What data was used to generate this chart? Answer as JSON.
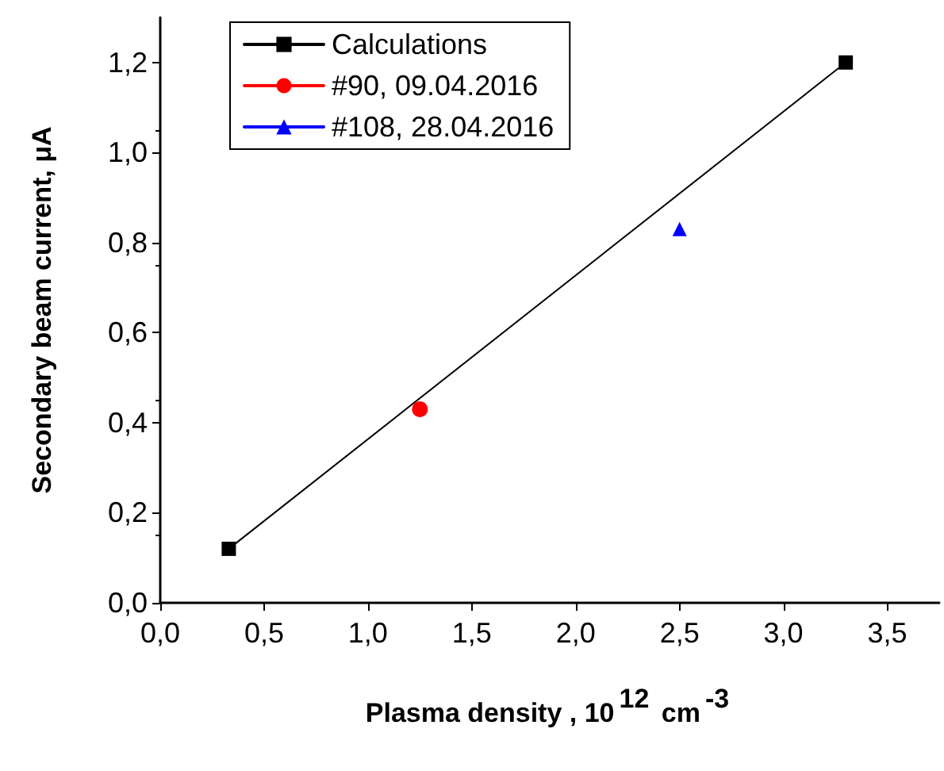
{
  "chart_data": {
    "type": "line",
    "xlabel": "Plasma density ,  10$^{12}$ cm$^{-3}$",
    "ylabel": "Secondary beam current, μA",
    "series": [
      {
        "name": "Calculations",
        "color": "#000000",
        "x": [
          0.33,
          3.3
        ],
        "values": [
          0.12,
          1.2
        ],
        "marker": "square"
      },
      {
        "name": "#90, 09.04.2016",
        "color": "#ff0000",
        "x": [
          1.25
        ],
        "values": [
          0.43
        ],
        "marker": "circle"
      },
      {
        "name": "#108, 28.04.2016",
        "color": "#0000ff",
        "x": [
          2.5
        ],
        "values": [
          0.83
        ],
        "marker": "triangle"
      }
    ],
    "xlim": [
      0,
      3.75
    ],
    "ylim": [
      0,
      1.3
    ],
    "xticks": [
      {
        "value": 0,
        "label": "0,0"
      },
      {
        "value": 0.5,
        "label": "0,5"
      },
      {
        "value": 1,
        "label": "1,0"
      },
      {
        "value": 1.5,
        "label": "1,5"
      },
      {
        "value": 2,
        "label": "2,0"
      },
      {
        "value": 2.5,
        "label": "2,5"
      },
      {
        "value": 3,
        "label": "3,0"
      },
      {
        "value": 3.5,
        "label": "3,5"
      }
    ],
    "yticks": [
      {
        "value": 0,
        "label": "0,0"
      },
      {
        "value": 0.2,
        "label": "0,2"
      },
      {
        "value": 0.4,
        "label": "0,4"
      },
      {
        "value": 0.6,
        "label": "0,6"
      },
      {
        "value": 0.8,
        "label": "0,8"
      },
      {
        "value": 1,
        "label": "1,0"
      },
      {
        "value": 1.2,
        "label": "1,2"
      }
    ],
    "grid": false,
    "legend": "top left",
    "line_style": "solid"
  }
}
